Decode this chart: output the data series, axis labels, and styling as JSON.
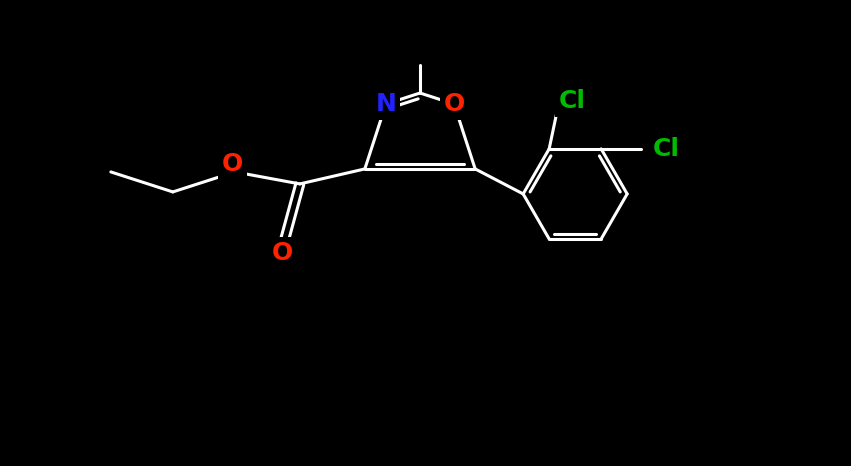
{
  "background_color": "#000000",
  "bond_color": "#ffffff",
  "bond_width": 2.2,
  "atom_colors": {
    "N": "#2222ff",
    "O": "#ff2200",
    "Cl": "#00bb00",
    "C": "#ffffff"
  },
  "font_size_N": 18,
  "font_size_O": 18,
  "font_size_Cl": 18
}
